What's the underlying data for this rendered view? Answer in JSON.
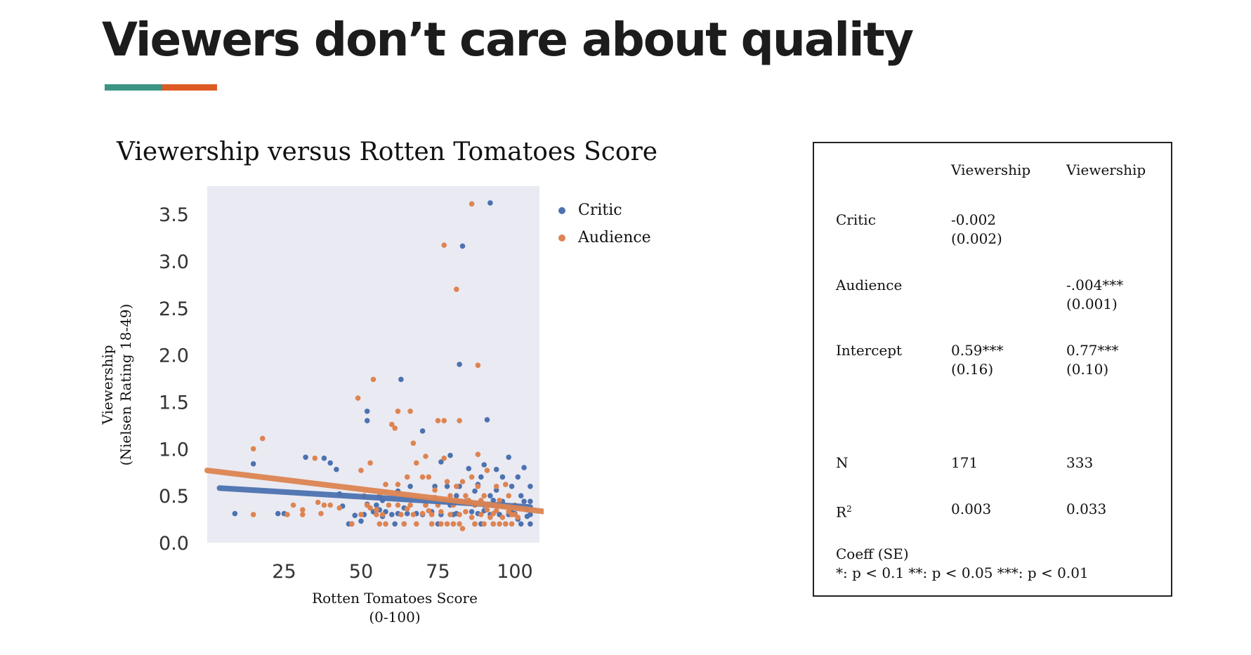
{
  "slide": {
    "title": "Viewers don’t care about quality",
    "accent_colors": [
      "#3b9483",
      "#dd5b23"
    ]
  },
  "chart_data": {
    "type": "scatter",
    "title": "Viewership versus Rotten Tomatoes Score",
    "xlabel": [
      "Rotten Tomatoes Score",
      "(0-100)"
    ],
    "ylabel": [
      "Viewership",
      "(Nielsen Rating 18-49)"
    ],
    "xlim": [
      0,
      108
    ],
    "ylim": [
      0,
      3.8
    ],
    "x_ticks": [
      25,
      50,
      75,
      100
    ],
    "x_tick_labels": [
      "25",
      "50",
      "75",
      "100"
    ],
    "y_ticks": [
      0.0,
      0.5,
      1.0,
      1.5,
      2.0,
      2.5,
      3.0,
      3.5
    ],
    "y_tick_labels": [
      "0.0",
      "0.5",
      "1.0",
      "1.5",
      "2.0",
      "2.5",
      "3.0",
      "3.5"
    ],
    "grid": false,
    "background": "#eaeaf2",
    "legend_position": "right-top",
    "series": [
      {
        "name": "Critic",
        "color": "#4c72b0",
        "fit": {
          "intercept": 0.59,
          "slope": -0.002,
          "x_range": [
            4,
            105
          ]
        },
        "points": [
          [
            9,
            0.31
          ],
          [
            15,
            0.84
          ],
          [
            23,
            0.31
          ],
          [
            25,
            0.31
          ],
          [
            32,
            0.91
          ],
          [
            38,
            0.9
          ],
          [
            40,
            0.85
          ],
          [
            42,
            0.78
          ],
          [
            43,
            0.52
          ],
          [
            44,
            0.39
          ],
          [
            46,
            0.2
          ],
          [
            47,
            0.2
          ],
          [
            48,
            0.29
          ],
          [
            50,
            0.23
          ],
          [
            51,
            0.3
          ],
          [
            52,
            0.41
          ],
          [
            52,
            1.4
          ],
          [
            52,
            1.3
          ],
          [
            54,
            0.33
          ],
          [
            55,
            0.4
          ],
          [
            56,
            0.35
          ],
          [
            57,
            0.28
          ],
          [
            57,
            0.45
          ],
          [
            58,
            0.33
          ],
          [
            60,
            0.3
          ],
          [
            61,
            0.2
          ],
          [
            62,
            0.31
          ],
          [
            62,
            0.55
          ],
          [
            63,
            1.74
          ],
          [
            64,
            0.37
          ],
          [
            64,
            0.2
          ],
          [
            65,
            0.31
          ],
          [
            66,
            0.6
          ],
          [
            68,
            0.31
          ],
          [
            70,
            0.3
          ],
          [
            70,
            1.19
          ],
          [
            71,
            0.4
          ],
          [
            73,
            0.33
          ],
          [
            73,
            0.2
          ],
          [
            74,
            0.6
          ],
          [
            74,
            0.48
          ],
          [
            75,
            0.2
          ],
          [
            76,
            0.3
          ],
          [
            76,
            0.86
          ],
          [
            77,
            0.44
          ],
          [
            78,
            0.6
          ],
          [
            79,
            0.4
          ],
          [
            79,
            0.93
          ],
          [
            80,
            0.3
          ],
          [
            80,
            0.2
          ],
          [
            81,
            0.5
          ],
          [
            81,
            0.31
          ],
          [
            82,
            0.6
          ],
          [
            82,
            1.9
          ],
          [
            83,
            3.16
          ],
          [
            84,
            0.44
          ],
          [
            85,
            0.79
          ],
          [
            86,
            0.33
          ],
          [
            87,
            0.55
          ],
          [
            87,
            0.2
          ],
          [
            88,
            0.31
          ],
          [
            88,
            0.62
          ],
          [
            89,
            0.7
          ],
          [
            89,
            0.2
          ],
          [
            90,
            0.4
          ],
          [
            90,
            0.34
          ],
          [
            90,
            0.83
          ],
          [
            91,
            1.31
          ],
          [
            92,
            0.3
          ],
          [
            92,
            0.5
          ],
          [
            92,
            3.62
          ],
          [
            93,
            0.2
          ],
          [
            93,
            0.45
          ],
          [
            94,
            0.78
          ],
          [
            94,
            0.56
          ],
          [
            95,
            0.3
          ],
          [
            96,
            0.7
          ],
          [
            96,
            0.44
          ],
          [
            97,
            0.2
          ],
          [
            98,
            0.3
          ],
          [
            98,
            0.91
          ],
          [
            99,
            0.6
          ],
          [
            99,
            0.35
          ],
          [
            100,
            0.31
          ],
          [
            101,
            0.7
          ],
          [
            101,
            0.25
          ],
          [
            102,
            0.5
          ],
          [
            102,
            0.2
          ],
          [
            103,
            0.44
          ],
          [
            103,
            0.8
          ],
          [
            104,
            0.35
          ],
          [
            104,
            0.28
          ],
          [
            105,
            0.44
          ],
          [
            105,
            0.6
          ],
          [
            105,
            0.2
          ],
          [
            105,
            0.3
          ]
        ]
      },
      {
        "name": "Audience",
        "color": "#dd8452",
        "fit": {
          "intercept": 0.77,
          "slope": -0.004,
          "x_range": [
            0,
            110
          ]
        },
        "points": [
          [
            15,
            0.3
          ],
          [
            15,
            1.0
          ],
          [
            18,
            1.11
          ],
          [
            26,
            0.3
          ],
          [
            28,
            0.4
          ],
          [
            31,
            0.35
          ],
          [
            31,
            0.3
          ],
          [
            35,
            0.9
          ],
          [
            36,
            0.43
          ],
          [
            37,
            0.31
          ],
          [
            38,
            0.4
          ],
          [
            40,
            0.4
          ],
          [
            43,
            0.37
          ],
          [
            47,
            0.2
          ],
          [
            49,
            1.54
          ],
          [
            50,
            0.77
          ],
          [
            50,
            0.3
          ],
          [
            51,
            0.5
          ],
          [
            52,
            0.4
          ],
          [
            53,
            0.85
          ],
          [
            53,
            0.37
          ],
          [
            54,
            1.74
          ],
          [
            55,
            0.35
          ],
          [
            55,
            0.3
          ],
          [
            56,
            0.5
          ],
          [
            56,
            0.2
          ],
          [
            57,
            0.3
          ],
          [
            58,
            0.62
          ],
          [
            58,
            0.2
          ],
          [
            59,
            0.4
          ],
          [
            60,
            1.26
          ],
          [
            61,
            1.22
          ],
          [
            62,
            1.4
          ],
          [
            62,
            0.4
          ],
          [
            62,
            0.62
          ],
          [
            63,
            0.3
          ],
          [
            64,
            0.2
          ],
          [
            65,
            0.7
          ],
          [
            65,
            0.36
          ],
          [
            66,
            1.4
          ],
          [
            66,
            0.4
          ],
          [
            67,
            0.3
          ],
          [
            67,
            1.06
          ],
          [
            68,
            0.85
          ],
          [
            68,
            0.2
          ],
          [
            70,
            0.7
          ],
          [
            70,
            0.31
          ],
          [
            71,
            0.4
          ],
          [
            71,
            0.92
          ],
          [
            72,
            0.34
          ],
          [
            72,
            0.7
          ],
          [
            73,
            0.3
          ],
          [
            73,
            0.2
          ],
          [
            74,
            0.56
          ],
          [
            74,
            0.48
          ],
          [
            75,
            1.3
          ],
          [
            75,
            0.4
          ],
          [
            76,
            0.2
          ],
          [
            76,
            0.33
          ],
          [
            77,
            3.17
          ],
          [
            77,
            0.9
          ],
          [
            77,
            1.3
          ],
          [
            78,
            0.2
          ],
          [
            78,
            0.65
          ],
          [
            79,
            0.5
          ],
          [
            79,
            0.3
          ],
          [
            80,
            0.4
          ],
          [
            80,
            0.2
          ],
          [
            81,
            2.7
          ],
          [
            81,
            0.6
          ],
          [
            82,
            0.3
          ],
          [
            82,
            1.3
          ],
          [
            82,
            0.2
          ],
          [
            83,
            0.65
          ],
          [
            83,
            0.15
          ],
          [
            84,
            0.33
          ],
          [
            84,
            0.5
          ],
          [
            85,
            0.45
          ],
          [
            86,
            3.61
          ],
          [
            86,
            0.27
          ],
          [
            86,
            0.7
          ],
          [
            87,
            0.2
          ],
          [
            87,
            0.4
          ],
          [
            88,
            1.89
          ],
          [
            88,
            0.94
          ],
          [
            88,
            0.6
          ],
          [
            89,
            0.3
          ],
          [
            89,
            0.45
          ],
          [
            90,
            0.2
          ],
          [
            90,
            0.5
          ],
          [
            91,
            0.35
          ],
          [
            91,
            0.77
          ],
          [
            92,
            0.27
          ],
          [
            92,
            0.4
          ],
          [
            93,
            0.2
          ],
          [
            93,
            0.31
          ],
          [
            94,
            0.6
          ],
          [
            94,
            0.34
          ],
          [
            95,
            0.45
          ],
          [
            95,
            0.2
          ],
          [
            96,
            0.27
          ],
          [
            96,
            0.4
          ],
          [
            97,
            0.62
          ],
          [
            97,
            0.2
          ],
          [
            98,
            0.33
          ],
          [
            98,
            0.5
          ],
          [
            99,
            0.3
          ],
          [
            99,
            0.2
          ],
          [
            100,
            0.4
          ],
          [
            100,
            0.3
          ],
          [
            101,
            0.27
          ],
          [
            101,
            0.37
          ]
        ]
      }
    ]
  },
  "regression_table": {
    "headers": [
      "",
      "Viewership",
      "Viewership"
    ],
    "rows": [
      {
        "label": "Critic",
        "col1": [
          "-0.002",
          "(0.002)"
        ],
        "col2": [
          "",
          ""
        ]
      },
      {
        "label": "Audience",
        "col1": [
          "",
          ""
        ],
        "col2": [
          "-.004***",
          "(0.001)"
        ]
      },
      {
        "label": "Intercept",
        "col1": [
          "0.59***",
          "(0.16)"
        ],
        "col2": [
          "0.77***",
          "(0.10)"
        ]
      },
      {
        "label": "N",
        "col1": [
          "171"
        ],
        "col2": [
          "333"
        ]
      },
      {
        "label": "R",
        "label_superscript": "2",
        "col1": [
          "0.003"
        ],
        "col2": [
          "0.033"
        ]
      }
    ],
    "footnote": [
      "Coeff (SE)",
      "*: p < 0.1 **: p < 0.05 ***: p < 0.01"
    ]
  }
}
